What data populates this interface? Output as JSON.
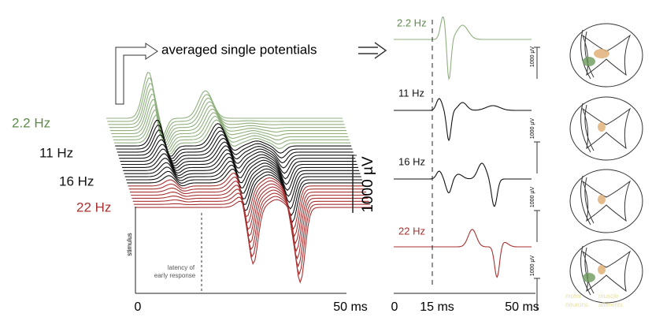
{
  "header": {
    "title": "averaged single potentials"
  },
  "left_panel": {
    "frequencies": [
      "2.2 Hz",
      "11 Hz",
      "16 Hz",
      "22 Hz"
    ],
    "scale": "1000 µV",
    "stimulus": "stimulus",
    "latency": [
      "latency of",
      "early response"
    ],
    "x_labels": [
      "0",
      "50 ms"
    ]
  },
  "right_panel": {
    "frequencies": [
      "2.2 Hz",
      "11 Hz",
      "16 Hz",
      "22 Hz"
    ],
    "scale_labels": [
      "1000 µV",
      "1000 µV",
      "1000 µV",
      "1000 µV"
    ],
    "x_labels": [
      "0",
      "15 ms",
      "50 ms"
    ]
  },
  "legend": [
    "motor",
    "neurons",
    "muscle",
    "afferents"
  ]
}
